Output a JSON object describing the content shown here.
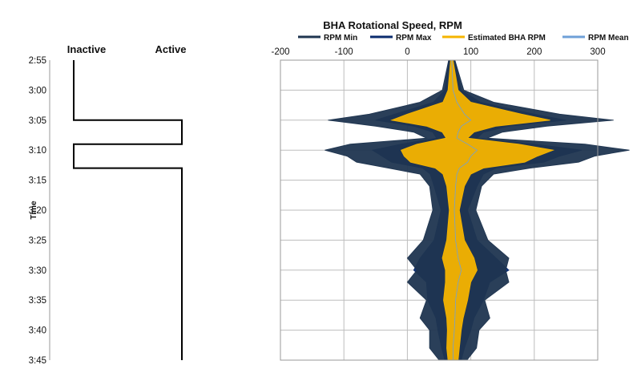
{
  "chart_data": [
    {
      "type": "step",
      "title": "",
      "xlabel": "",
      "ylabel": "Time",
      "x_categories": [
        "Inactive",
        "Active"
      ],
      "y_ticks": [
        "2:55",
        "3:00",
        "3:05",
        "3:10",
        "3:15",
        "3:20",
        "3:25",
        "3:30",
        "3:35",
        "3:40",
        "3:45"
      ],
      "state_series": [
        {
          "time": "2:55",
          "state": "Inactive"
        },
        {
          "time": "3:05",
          "state": "Active"
        },
        {
          "time": "3:09",
          "state": "Inactive"
        },
        {
          "time": "3:13",
          "state": "Active"
        },
        {
          "time": "3:45",
          "state": "Active"
        }
      ]
    },
    {
      "type": "area",
      "title": "BHA Rotational Speed, RPM",
      "xlabel": "",
      "ylabel": "",
      "xlim": [
        -200,
        300
      ],
      "x_ticks": [
        "-200",
        "-100",
        "0",
        "100",
        "200",
        "300"
      ],
      "y_ticks": [
        "2:55",
        "3:00",
        "3:05",
        "3:10",
        "3:15",
        "3:20",
        "3:25",
        "3:30",
        "3:35",
        "3:40",
        "3:45"
      ],
      "grid": true,
      "legend_position": "top",
      "series": [
        {
          "name": "RPM Min",
          "color": "#1f3550",
          "time": [
            "2:55",
            "3:00",
            "3:02",
            "3:04",
            "3:05",
            "3:06",
            "3:07",
            "3:08",
            "3:09",
            "3:10",
            "3:11",
            "3:12",
            "3:13",
            "3:14",
            "3:16",
            "3:20",
            "3:25",
            "3:28",
            "3:30",
            "3:32",
            "3:35",
            "3:38",
            "3:40",
            "3:43",
            "3:45"
          ],
          "values": [
            65,
            55,
            20,
            -60,
            -125,
            -50,
            10,
            30,
            -90,
            -130,
            -95,
            -80,
            -30,
            20,
            35,
            40,
            25,
            0,
            15,
            0,
            30,
            20,
            35,
            35,
            50
          ]
        },
        {
          "name": "RPM Max",
          "color": "#0a2b6e",
          "time": [
            "2:55",
            "3:00",
            "3:02",
            "3:04",
            "3:05",
            "3:06",
            "3:07",
            "3:08",
            "3:09",
            "3:10",
            "3:11",
            "3:12",
            "3:13",
            "3:14",
            "3:16",
            "3:20",
            "3:25",
            "3:28",
            "3:30",
            "3:32",
            "3:35",
            "3:38",
            "3:40",
            "3:43",
            "3:45"
          ],
          "values": [
            75,
            85,
            115,
            200,
            250,
            160,
            120,
            110,
            200,
            275,
            240,
            215,
            140,
            120,
            110,
            95,
            110,
            140,
            160,
            130,
            120,
            105,
            100,
            90,
            85
          ]
        },
        {
          "name": "Estimated BHA RPM",
          "color": "#f5b400",
          "time": [
            "2:55",
            "3:00",
            "3:02",
            "3:04",
            "3:05",
            "3:06",
            "3:07",
            "3:08",
            "3:09",
            "3:10",
            "3:11",
            "3:12",
            "3:13",
            "3:14",
            "3:16",
            "3:20",
            "3:25",
            "3:28",
            "3:30",
            "3:32",
            "3:35",
            "3:38",
            "3:40",
            "3:43",
            "3:45"
          ],
          "values": [
            72,
            80,
            100,
            180,
            225,
            140,
            105,
            95,
            175,
            230,
            205,
            185,
            120,
            100,
            90,
            82,
            90,
            105,
            110,
            100,
            95,
            88,
            85,
            82,
            80
          ]
        },
        {
          "name": "RPM Mean",
          "color": "#6fa0d8",
          "time": [
            "2:55",
            "3:00",
            "3:02",
            "3:04",
            "3:05",
            "3:06",
            "3:07",
            "3:08",
            "3:09",
            "3:10",
            "3:11",
            "3:12",
            "3:13",
            "3:14",
            "3:16",
            "3:20",
            "3:25",
            "3:28",
            "3:30",
            "3:32",
            "3:35",
            "3:38",
            "3:40",
            "3:43",
            "3:45"
          ],
          "values": [
            70,
            72,
            78,
            90,
            100,
            85,
            80,
            78,
            95,
            110,
            100,
            95,
            82,
            78,
            76,
            74,
            76,
            80,
            85,
            80,
            76,
            75,
            74,
            72,
            72
          ]
        }
      ]
    }
  ]
}
